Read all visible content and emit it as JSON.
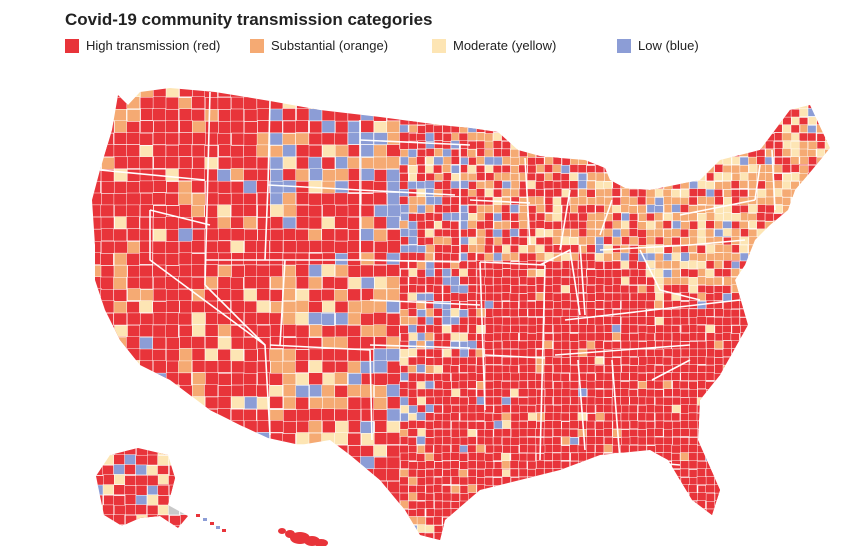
{
  "title": "Covid-19 community transmission categories",
  "legend": [
    {
      "label": "High transmission (red)",
      "color": "#e8343a"
    },
    {
      "label": "Substantial (orange)",
      "color": "#f5aa73"
    },
    {
      "label": "Moderate (yellow)",
      "color": "#fde5b4"
    },
    {
      "label": "Low (blue)",
      "color": "#8c9dd6"
    }
  ],
  "colors": {
    "high": "#e8343a",
    "substantial": "#f5aa73",
    "moderate": "#fde5b4",
    "low": "#8c9dd6",
    "no_data": "#c9c9c9",
    "boundary": "#ffffff"
  }
}
